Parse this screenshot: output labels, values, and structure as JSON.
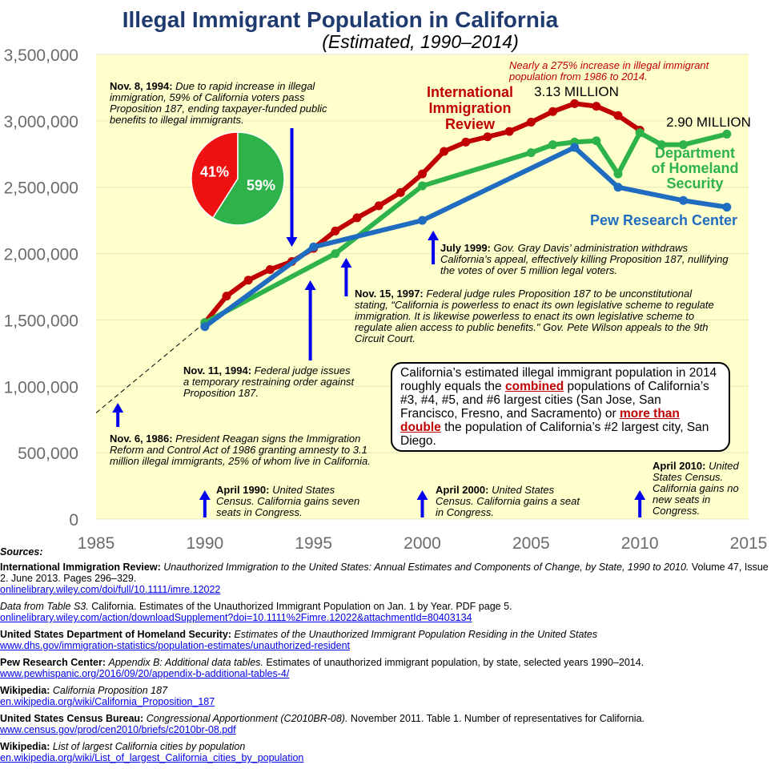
{
  "title": "Illegal Immigrant Population in California",
  "subtitle": "(Estimated, 1990–2014)",
  "chart_data": {
    "type": "line",
    "xlim": [
      1985,
      2015
    ],
    "ylim": [
      0,
      3500000
    ],
    "xticks": [
      1985,
      1990,
      1995,
      2000,
      2005,
      2010,
      2015
    ],
    "yticks": [
      0,
      500000,
      1000000,
      1500000,
      2000000,
      2500000,
      3000000,
      3500000
    ],
    "ytick_labels": [
      "0",
      "500,000",
      "1,000,000",
      "1,500,000",
      "2,000,000",
      "2,500,000",
      "3,000,000",
      "3,500,000"
    ],
    "series": [
      {
        "name": "International Immigration Review",
        "color": "#c00000",
        "label_lines": [
          "International",
          "Immigration",
          "Review"
        ],
        "x": [
          1990,
          1991,
          1992,
          1993,
          1994,
          1995,
          1996,
          1997,
          1998,
          1999,
          2000,
          2001,
          2002,
          2003,
          2004,
          2005,
          2006,
          2007,
          2008,
          2009,
          2010
        ],
        "y": [
          1480000,
          1680000,
          1800000,
          1880000,
          1940000,
          2040000,
          2170000,
          2270000,
          2360000,
          2460000,
          2600000,
          2770000,
          2840000,
          2880000,
          2920000,
          2990000,
          3070000,
          3130000,
          3110000,
          3040000,
          2930000
        ]
      },
      {
        "name": "Department of Homeland Security",
        "color": "#2eb24a",
        "label_lines": [
          "Department",
          "of Homeland",
          "Security"
        ],
        "x": [
          1990,
          1996,
          2000,
          2005,
          2006,
          2007,
          2008,
          2009,
          2010,
          2011,
          2012,
          2014
        ],
        "y": [
          1480000,
          2000000,
          2510000,
          2760000,
          2820000,
          2840000,
          2850000,
          2600000,
          2910000,
          2820000,
          2820000,
          2900000
        ]
      },
      {
        "name": "Pew Research Center",
        "color": "#1f6cc0",
        "label_lines": [
          "Pew Research Center"
        ],
        "x": [
          1990,
          1995,
          2000,
          2007,
          2009,
          2012,
          2014
        ],
        "y": [
          1450000,
          2050000,
          2250000,
          2800000,
          2500000,
          2400000,
          2350000
        ]
      }
    ],
    "trend_extension": {
      "style": "dashed",
      "x": [
        1985,
        1990
      ],
      "y": [
        800000,
        1480000
      ]
    },
    "peak_labels": [
      {
        "text": "3.13 MILLION",
        "x": 2007,
        "y": 3130000
      },
      {
        "text": "2.90 MILLION",
        "x": 2014,
        "y": 2900000
      }
    ],
    "pie": {
      "values": [
        41,
        59
      ],
      "labels": [
        "41%",
        "59%"
      ],
      "colors": [
        "#ee1111",
        "#2eb24a"
      ]
    },
    "event_arrows": [
      {
        "x": 1986,
        "year_label": "1986"
      },
      {
        "x": 1990,
        "year_label": "1990"
      },
      {
        "x": 1994,
        "year_label": "Nov 1994"
      },
      {
        "x": 1994.85,
        "year_label": "Nov 1994"
      },
      {
        "x": 1996.5,
        "year_label": "1997"
      },
      {
        "x": 2000,
        "year_label": "2000"
      },
      {
        "x": 2000.5,
        "year_label": "1999"
      },
      {
        "x": 2010,
        "year_label": "2010"
      }
    ]
  },
  "annotations": {
    "percent_note": "Nearly a 275% increase in illegal immigrant population from 1986 to 2014.",
    "nov1994_prop": {
      "date": "Nov. 8, 1994:",
      "text": "Due to rapid increase in illegal immigration, 59% of California voters pass Proposition 187, ending taxpayer-funded public benefits to illegal immigrants."
    },
    "jul1999": {
      "date": "July 1999:",
      "text": "Gov. Gray Davis’ administration withdraws California’s appeal, effectively killing Proposition 187, nullifying the votes of over 5 million legal voters."
    },
    "nov1997": {
      "date": "Nov. 15, 1997:",
      "text": "Federal judge rules Proposition 187 to be unconstitutional stating, “California is powerless to enact its own legislative scheme to regulate immigration. It is likewise powerless to enact its own legislative scheme to regulate alien access to public benefits.\" Gov. Pete Wilson appeals to the 9th Circuit Court."
    },
    "nov1994_judge": {
      "date": "Nov. 11, 1994:",
      "text": "Federal judge issues a temporary restraining order against Proposition 187."
    },
    "nov1986": {
      "date": "Nov. 6, 1986:",
      "text": "President Reagan signs the Immigration Reform and Control Act of 1986 granting amnesty to 3.1 million illegal immigrants, 25% of whom live in California."
    },
    "apr1990": {
      "date": "April 1990:",
      "text": "United States Census. California gains seven seats in Congress."
    },
    "apr2000": {
      "date": "April 2000:",
      "text": "United States Census. California gains a seat in Congress."
    },
    "apr2010": {
      "date": "April 2010:",
      "text": "United States Census. California gains no new seats in Congress."
    }
  },
  "callout": {
    "part1": "California’s estimated illegal immigrant population in 2014 roughly equals the ",
    "em1": "combined",
    "part2": " populations of California’s #3, #4, #5, and #6 largest cities (San Jose, San Francisco, Fresno, and Sacramento) or ",
    "em2": "more than double",
    "part3": " the population of California’s #2 largest city, San Diego."
  },
  "sources": {
    "heading": "Sources:",
    "items": [
      {
        "org": "International Immigration Review:",
        "title": "Unauthorized Immigration to the United States: Annual Estimates and Components of Change, by State, 1990 to 2010.",
        "detail": "Volume 47, Issue 2. June 2013. Pages 296–329.",
        "url": "onlinelibrary.wiley.com/doi/full/10.1111/imre.12022"
      },
      {
        "org": "",
        "title": "Data from Table  S3.",
        "detail": "California. Estimates of the Unauthorized Immigrant Population on Jan. 1 by Year. PDF page 5.",
        "url": "onlinelibrary.wiley.com/action/downloadSupplement?doi=10.1111%2Fimre.12022&attachmentId=80403134"
      },
      {
        "org": "United States Department of Homeland Security:",
        "title": "Estimates of the Unauthorized Immigrant Population Residing in the United States",
        "detail": "",
        "url": "www.dhs.gov/immigration-statistics/population-estimates/unauthorized-resident"
      },
      {
        "org": "Pew Research Center:",
        "title": "Appendix B: Additional data tables.",
        "detail": "Estimates of unauthorized immigrant population, by state, selected years 1990–2014.",
        "url": "www.pewhispanic.org/2016/09/20/appendix-b-additional-tables-4/"
      },
      {
        "org": "Wikipedia:",
        "title": "California Proposition 187",
        "detail": "",
        "url": "en.wikipedia.org/wiki/California_Proposition_187"
      },
      {
        "org": "United States Census Bureau:",
        "title": "Congressional Apportionment (C2010BR-08).",
        "detail": "November 2011. Table 1. Number of representatives for California.",
        "url": "www.census.gov/prod/cen2010/briefs/c2010br-08.pdf"
      },
      {
        "org": "Wikipedia:",
        "title": "List of largest California cities by population",
        "detail": "",
        "url": "en.wikipedia.org/wiki/List_of_largest_California_cities_by_population"
      }
    ]
  }
}
